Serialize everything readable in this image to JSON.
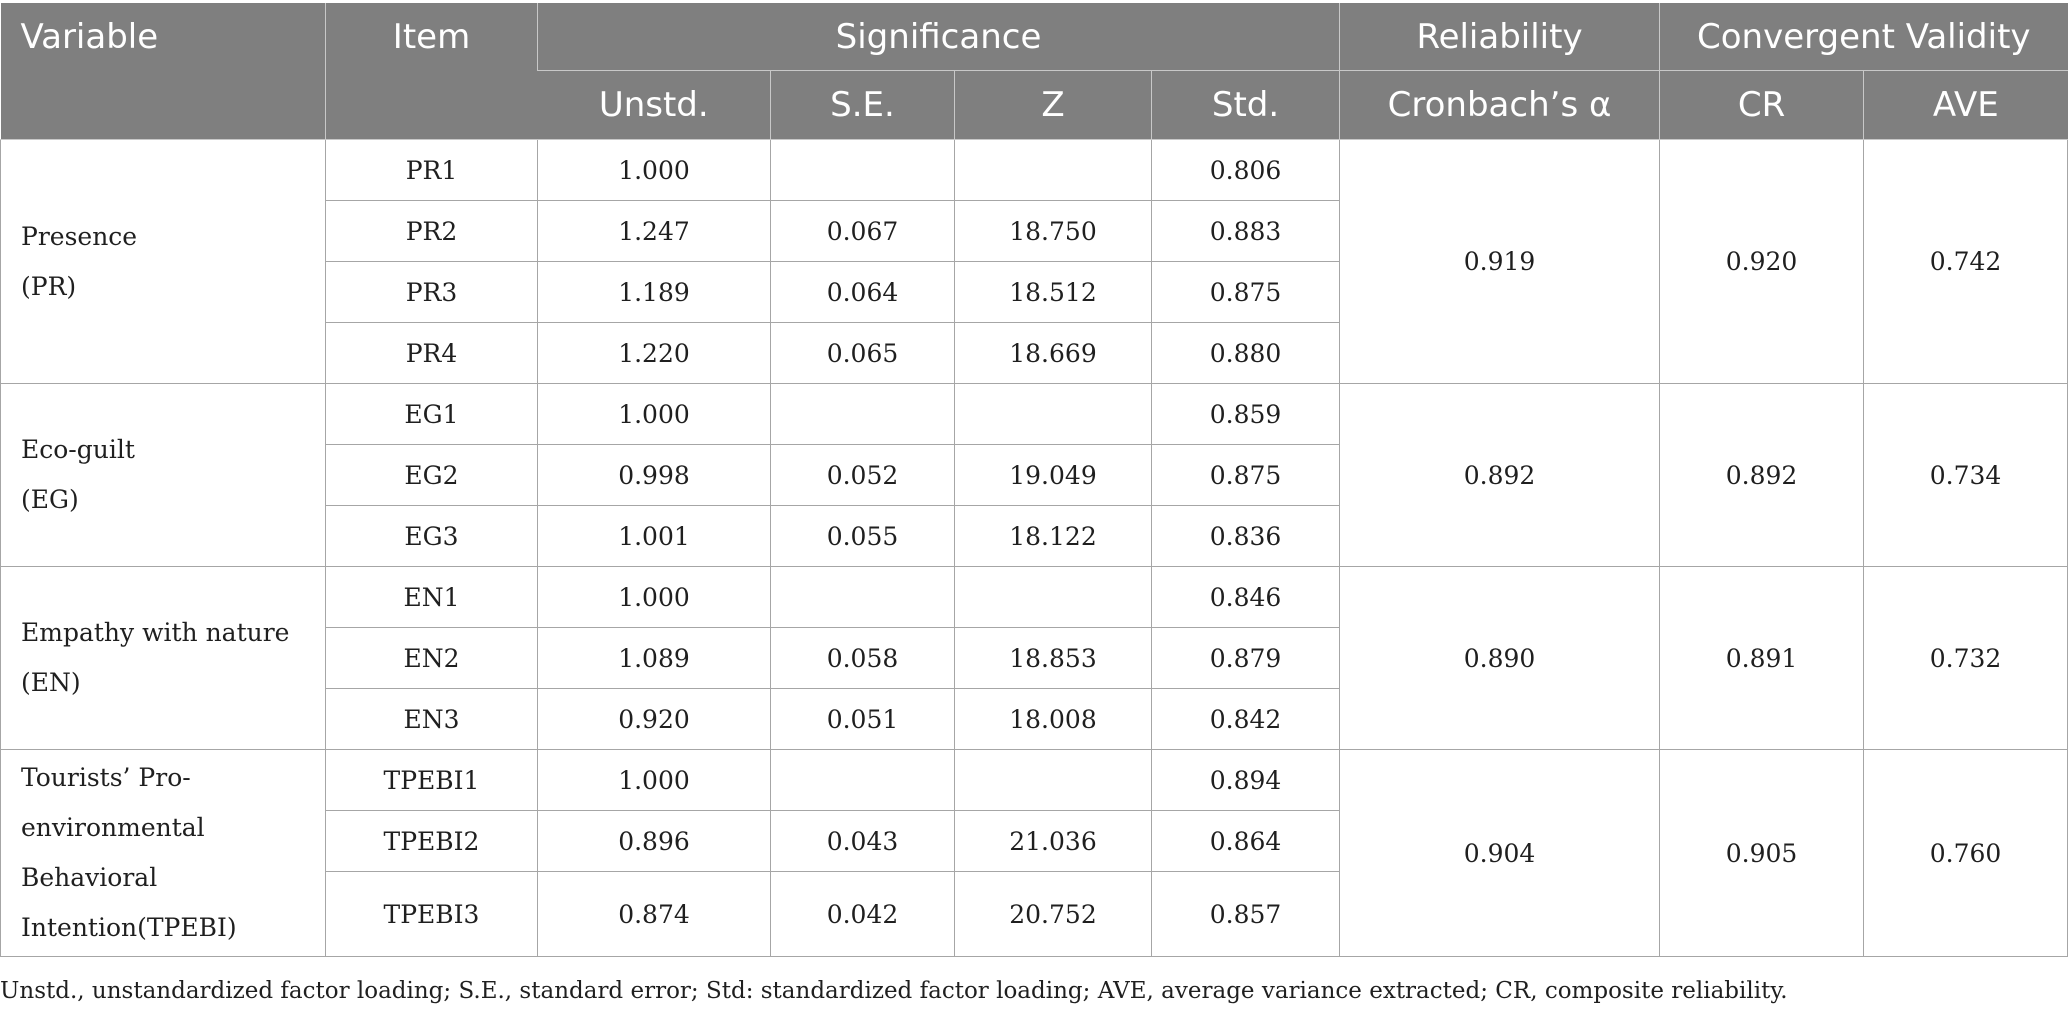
{
  "header": {
    "variable": "Variable",
    "item": "Item",
    "significance": "Significance",
    "reliability": "Reliability",
    "convergent_validity": "Convergent Validity",
    "unstd": "Unstd.",
    "se": "S.E.",
    "z": "Z",
    "std": "Std.",
    "cronbach": "Cronbach’s α",
    "cr": "CR",
    "ave": "AVE"
  },
  "groups": [
    {
      "variable_lines": [
        "Presence",
        "(PR)"
      ],
      "alpha": "0.919",
      "cr": "0.920",
      "ave": "0.742",
      "rows": [
        {
          "item": "PR1",
          "unstd": "1.000",
          "se": "",
          "z": "",
          "std": "0.806"
        },
        {
          "item": "PR2",
          "unstd": "1.247",
          "se": "0.067",
          "z": "18.750",
          "std": "0.883"
        },
        {
          "item": "PR3",
          "unstd": "1.189",
          "se": "0.064",
          "z": "18.512",
          "std": "0.875"
        },
        {
          "item": "PR4",
          "unstd": "1.220",
          "se": "0.065",
          "z": "18.669",
          "std": "0.880"
        }
      ]
    },
    {
      "variable_lines": [
        "Eco-guilt",
        "(EG)"
      ],
      "alpha": "0.892",
      "cr": "0.892",
      "ave": "0.734",
      "rows": [
        {
          "item": "EG1",
          "unstd": "1.000",
          "se": "",
          "z": "",
          "std": "0.859"
        },
        {
          "item": "EG2",
          "unstd": "0.998",
          "se": "0.052",
          "z": "19.049",
          "std": "0.875"
        },
        {
          "item": "EG3",
          "unstd": "1.001",
          "se": "0.055",
          "z": "18.122",
          "std": "0.836"
        }
      ]
    },
    {
      "variable_lines": [
        "Empathy with nature",
        "(EN)"
      ],
      "alpha": "0.890",
      "cr": "0.891",
      "ave": "0.732",
      "rows": [
        {
          "item": "EN1",
          "unstd": "1.000",
          "se": "",
          "z": "",
          "std": "0.846"
        },
        {
          "item": "EN2",
          "unstd": "1.089",
          "se": "0.058",
          "z": "18.853",
          "std": "0.879"
        },
        {
          "item": "EN3",
          "unstd": "0.920",
          "se": "0.051",
          "z": "18.008",
          "std": "0.842"
        }
      ]
    },
    {
      "variable_lines": [
        "Tourists’ Pro-",
        "environmental",
        "Behavioral",
        "Intention(TPEBI)"
      ],
      "alpha": "0.904",
      "cr": "0.905",
      "ave": "0.760",
      "rows": [
        {
          "item": "TPEBI1",
          "unstd": "1.000",
          "se": "",
          "z": "",
          "std": "0.894"
        },
        {
          "item": "TPEBI2",
          "unstd": "0.896",
          "se": "0.043",
          "z": "21.036",
          "std": "0.864"
        },
        {
          "item": "TPEBI3",
          "unstd": "0.874",
          "se": "0.042",
          "z": "20.752",
          "std": "0.857"
        }
      ]
    }
  ],
  "footnote": "Unstd., unstandardized factor loading; S.E., standard error; Std: standardized factor loading; AVE, average variance extracted; CR, composite reliability."
}
